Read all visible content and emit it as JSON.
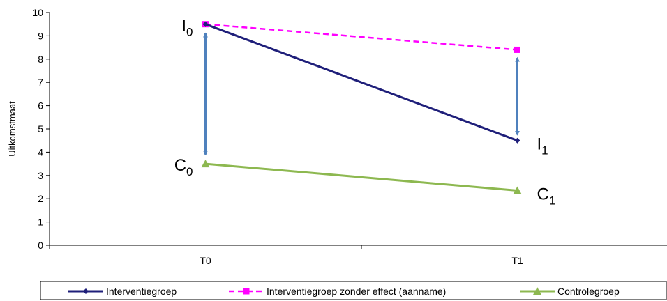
{
  "chart_data": {
    "type": "line",
    "categories": [
      "T0",
      "T1"
    ],
    "ylabel": "Uitkomstmaat",
    "ylim": [
      0,
      10
    ],
    "yticks": [
      0,
      1,
      2,
      3,
      4,
      5,
      6,
      7,
      8,
      9,
      10
    ],
    "grid": false,
    "legend_position": "bottom",
    "series": [
      {
        "name": "Interventiegroep",
        "values": [
          9.5,
          4.5
        ],
        "color": "#1f1f7a",
        "marker": "diamond",
        "dash": false
      },
      {
        "name": "Interventiegroep zonder effect (aanname)",
        "values": [
          9.5,
          8.4
        ],
        "color": "#ff00ff",
        "marker": "square",
        "dash": true
      },
      {
        "name": "Controlegroep",
        "values": [
          3.5,
          2.35
        ],
        "color": "#8db850",
        "marker": "triangle",
        "dash": false
      }
    ],
    "arrows": [
      {
        "category": "T0",
        "from": 3.9,
        "to": 9.1,
        "color": "#4f81bd"
      },
      {
        "category": "T1",
        "from": 4.75,
        "to": 8.05,
        "color": "#4f81bd"
      }
    ],
    "annotations": [
      {
        "letter": "I",
        "sub": "0",
        "category": "T0",
        "value": 9.5,
        "side": "left"
      },
      {
        "letter": "C",
        "sub": "0",
        "category": "T0",
        "value": 3.5,
        "side": "left"
      },
      {
        "letter": "I",
        "sub": "1",
        "category": "T1",
        "value": 4.5,
        "side": "right"
      },
      {
        "letter": "C",
        "sub": "1",
        "category": "T1",
        "value": 2.35,
        "side": "right"
      }
    ]
  }
}
